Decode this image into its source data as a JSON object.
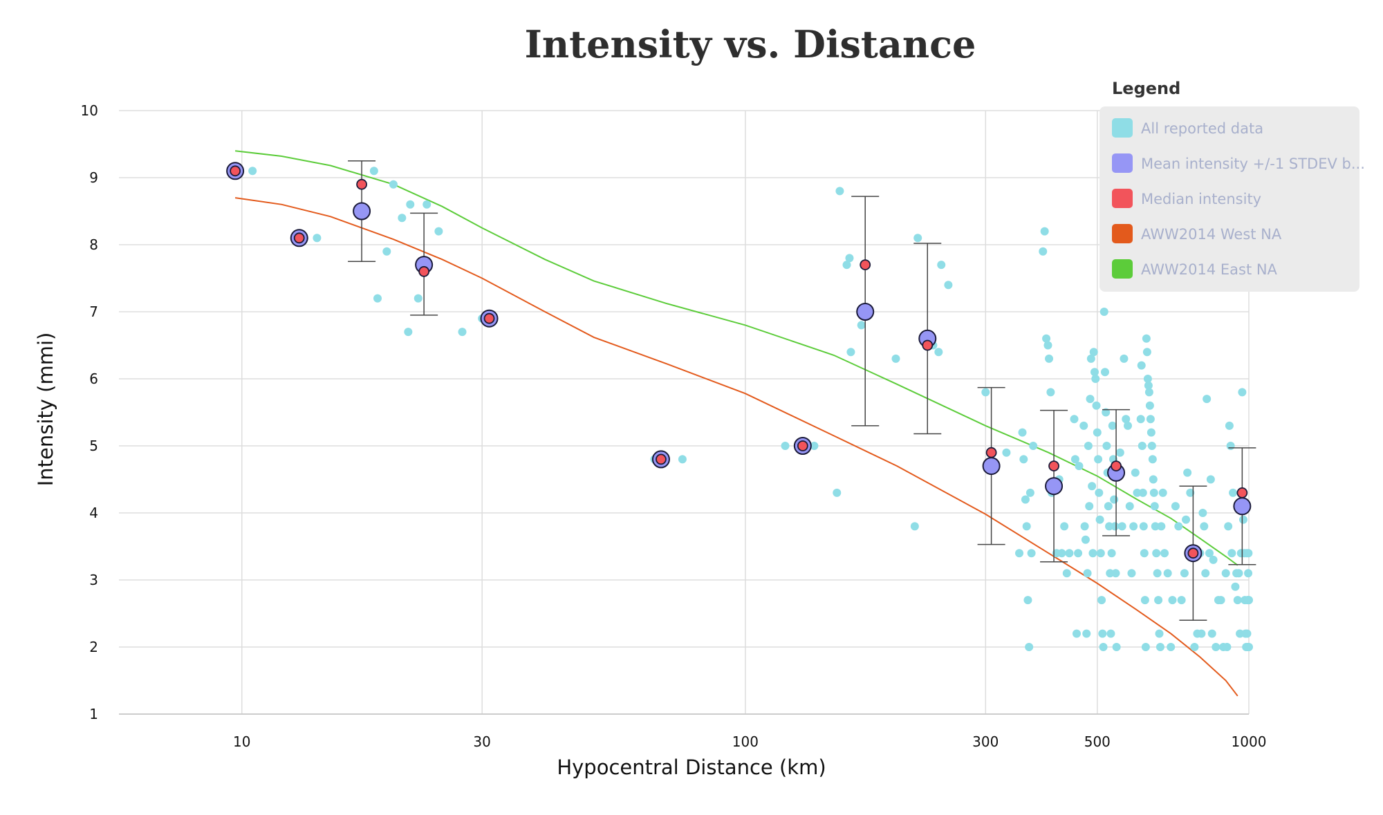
{
  "chart_data": {
    "type": "scatter",
    "title": "Intensity vs. Distance",
    "xlabel": "Hypocentral Distance (km)",
    "ylabel": "Intensity (mmi)",
    "xscale": "log",
    "xlim": [
      5.7,
      1000
    ],
    "ylim": [
      1,
      10
    ],
    "xticks": [
      10,
      30,
      100,
      300,
      500,
      1000
    ],
    "xtick_labels": [
      "10",
      "30",
      "100",
      "300",
      "500",
      "1000"
    ],
    "yticks": [
      1,
      2,
      3,
      4,
      5,
      6,
      7,
      8,
      9,
      10
    ],
    "ytick_labels": [
      "1",
      "2",
      "3",
      "4",
      "5",
      "6",
      "7",
      "8",
      "9",
      "10"
    ],
    "grid": true,
    "legend": {
      "title": "Legend",
      "position": "top-right",
      "entries": [
        {
          "label": "All reported data",
          "color": "#8fdde6"
        },
        {
          "label": "Mean intensity +/-1 STDEV b...",
          "color": "#9696f5"
        },
        {
          "label": "Median intensity",
          "color": "#f2545b"
        },
        {
          "label": "AWW2014 West NA",
          "color": "#e35a1c"
        },
        {
          "label": "AWW2014 East NA",
          "color": "#5ccc3a"
        }
      ]
    },
    "series": [
      {
        "name": "All reported data",
        "type": "scatter",
        "color": "#8fdde6",
        "points": [
          [
            9.7,
            9.1
          ],
          [
            10.5,
            9.1
          ],
          [
            13.3,
            8.1
          ],
          [
            14.1,
            8.1
          ],
          [
            18.3,
            9.1
          ],
          [
            18.6,
            7.2
          ],
          [
            19.4,
            7.9
          ],
          [
            20.0,
            8.9
          ],
          [
            20.8,
            8.4
          ],
          [
            21.4,
            6.7
          ],
          [
            21.6,
            8.6
          ],
          [
            22.4,
            7.2
          ],
          [
            23.3,
            8.6
          ],
          [
            24.6,
            8.2
          ],
          [
            27.4,
            6.7
          ],
          [
            30.0,
            6.9
          ],
          [
            31.0,
            6.9
          ],
          [
            31.5,
            6.9
          ],
          [
            66.0,
            4.8
          ],
          [
            75.0,
            4.8
          ],
          [
            120.0,
            5.0
          ],
          [
            137.0,
            5.0
          ],
          [
            152.0,
            4.3
          ],
          [
            154.0,
            8.8
          ],
          [
            159.0,
            7.7
          ],
          [
            161.0,
            7.8
          ],
          [
            162.0,
            6.4
          ],
          [
            170.0,
            6.8
          ],
          [
            199.0,
            6.3
          ],
          [
            217.0,
            3.8
          ],
          [
            220.0,
            8.1
          ],
          [
            236.0,
            6.5
          ],
          [
            242.0,
            6.4
          ],
          [
            245.0,
            7.7
          ],
          [
            253.0,
            7.4
          ],
          [
            300.0,
            5.8
          ],
          [
            308.0,
            4.7
          ],
          [
            330.0,
            4.9
          ],
          [
            350.0,
            3.4
          ],
          [
            355.0,
            5.2
          ],
          [
            357.0,
            4.8
          ],
          [
            360.0,
            4.2
          ],
          [
            362.0,
            3.8
          ],
          [
            364.0,
            2.7
          ],
          [
            366.0,
            2.0
          ],
          [
            368.0,
            4.3
          ],
          [
            370.0,
            3.4
          ],
          [
            373.0,
            5.0
          ],
          [
            390.0,
            7.9
          ],
          [
            393.0,
            8.2
          ],
          [
            396.0,
            6.6
          ],
          [
            399.0,
            6.5
          ],
          [
            401.0,
            6.3
          ],
          [
            404.0,
            5.8
          ],
          [
            406.0,
            4.3
          ],
          [
            410.0,
            4.7
          ],
          [
            415.0,
            3.4
          ],
          [
            420.0,
            4.5
          ],
          [
            425.0,
            3.4
          ],
          [
            430.0,
            3.8
          ],
          [
            435.0,
            3.1
          ],
          [
            440.0,
            3.4
          ],
          [
            450.0,
            5.4
          ],
          [
            452.0,
            4.8
          ],
          [
            455.0,
            2.2
          ],
          [
            458.0,
            3.4
          ],
          [
            460.0,
            4.7
          ],
          [
            470.0,
            5.3
          ],
          [
            472.0,
            3.8
          ],
          [
            474.0,
            3.6
          ],
          [
            476.0,
            2.2
          ],
          [
            478.0,
            3.1
          ],
          [
            480.0,
            5.0
          ],
          [
            482.0,
            4.1
          ],
          [
            484.0,
            5.7
          ],
          [
            486.0,
            6.3
          ],
          [
            488.0,
            4.4
          ],
          [
            490.0,
            3.4
          ],
          [
            492.0,
            6.4
          ],
          [
            494.0,
            6.1
          ],
          [
            496.0,
            6.0
          ],
          [
            498.0,
            5.6
          ],
          [
            500.0,
            5.2
          ],
          [
            502.0,
            4.8
          ],
          [
            504.0,
            4.3
          ],
          [
            506.0,
            3.9
          ],
          [
            508.0,
            3.4
          ],
          [
            510.0,
            2.7
          ],
          [
            512.0,
            2.2
          ],
          [
            514.0,
            2.0
          ],
          [
            516.0,
            7.0
          ],
          [
            518.0,
            6.1
          ],
          [
            520.0,
            5.5
          ],
          [
            522.0,
            5.0
          ],
          [
            524.0,
            4.6
          ],
          [
            526.0,
            4.1
          ],
          [
            528.0,
            3.8
          ],
          [
            530.0,
            3.1
          ],
          [
            532.0,
            2.2
          ],
          [
            534.0,
            3.4
          ],
          [
            536.0,
            5.3
          ],
          [
            538.0,
            4.8
          ],
          [
            540.0,
            4.2
          ],
          [
            542.0,
            3.8
          ],
          [
            544.0,
            3.1
          ],
          [
            546.0,
            2.0
          ],
          [
            550.0,
            4.6
          ],
          [
            555.0,
            4.9
          ],
          [
            560.0,
            3.8
          ],
          [
            565.0,
            6.3
          ],
          [
            570.0,
            5.4
          ],
          [
            575.0,
            5.3
          ],
          [
            580.0,
            4.1
          ],
          [
            585.0,
            3.1
          ],
          [
            590.0,
            3.8
          ],
          [
            595.0,
            4.6
          ],
          [
            600.0,
            4.3
          ],
          [
            610.0,
            5.4
          ],
          [
            612.0,
            6.2
          ],
          [
            614.0,
            5.0
          ],
          [
            616.0,
            4.3
          ],
          [
            618.0,
            3.8
          ],
          [
            620.0,
            3.4
          ],
          [
            622.0,
            2.7
          ],
          [
            624.0,
            2.0
          ],
          [
            626.0,
            6.6
          ],
          [
            628.0,
            6.4
          ],
          [
            630.0,
            6.0
          ],
          [
            632.0,
            5.9
          ],
          [
            634.0,
            5.8
          ],
          [
            636.0,
            5.6
          ],
          [
            638.0,
            5.4
          ],
          [
            640.0,
            5.2
          ],
          [
            642.0,
            5.0
          ],
          [
            644.0,
            4.8
          ],
          [
            646.0,
            4.5
          ],
          [
            648.0,
            4.3
          ],
          [
            650.0,
            4.1
          ],
          [
            652.0,
            3.8
          ],
          [
            655.0,
            3.4
          ],
          [
            658.0,
            3.1
          ],
          [
            661.0,
            2.7
          ],
          [
            664.0,
            2.2
          ],
          [
            667.0,
            2.0
          ],
          [
            670.0,
            3.8
          ],
          [
            675.0,
            4.3
          ],
          [
            680.0,
            3.4
          ],
          [
            690.0,
            3.1
          ],
          [
            700.0,
            2.0
          ],
          [
            705.0,
            2.7
          ],
          [
            715.0,
            4.1
          ],
          [
            725.0,
            3.8
          ],
          [
            735.0,
            2.7
          ],
          [
            745.0,
            3.1
          ],
          [
            750.0,
            3.9
          ],
          [
            755.0,
            4.6
          ],
          [
            765.0,
            4.3
          ],
          [
            780.0,
            2.0
          ],
          [
            790.0,
            2.2
          ],
          [
            800.0,
            3.4
          ],
          [
            805.0,
            2.2
          ],
          [
            810.0,
            4.0
          ],
          [
            815.0,
            3.8
          ],
          [
            820.0,
            3.1
          ],
          [
            825.0,
            5.7
          ],
          [
            835.0,
            3.4
          ],
          [
            840.0,
            4.5
          ],
          [
            845.0,
            2.2
          ],
          [
            850.0,
            3.3
          ],
          [
            860.0,
            2.0
          ],
          [
            870.0,
            2.7
          ],
          [
            880.0,
            2.7
          ],
          [
            890.0,
            2.0
          ],
          [
            900.0,
            3.1
          ],
          [
            905.0,
            2.0
          ],
          [
            910.0,
            3.8
          ],
          [
            915.0,
            5.3
          ],
          [
            920.0,
            5.0
          ],
          [
            925.0,
            3.4
          ],
          [
            930.0,
            4.3
          ],
          [
            940.0,
            2.9
          ],
          [
            945.0,
            3.1
          ],
          [
            950.0,
            2.7
          ],
          [
            955.0,
            3.1
          ],
          [
            960.0,
            2.2
          ],
          [
            965.0,
            3.4
          ],
          [
            970.0,
            5.8
          ],
          [
            975.0,
            3.9
          ],
          [
            980.0,
            3.4
          ],
          [
            982.0,
            2.7
          ],
          [
            985.0,
            2.2
          ],
          [
            988.0,
            2.0
          ],
          [
            990.0,
            3.4
          ],
          [
            992.0,
            2.2
          ],
          [
            994.0,
            2.7
          ],
          [
            996.0,
            2.0
          ],
          [
            997.0,
            3.1
          ],
          [
            998.0,
            3.4
          ],
          [
            999.0,
            2.7
          ],
          [
            1000.0,
            2.0
          ],
          [
            1000.0,
            2.7
          ]
        ]
      },
      {
        "name": "Mean intensity +/-1 STDEV b...",
        "type": "scatter_errorbar",
        "color": "#9696f5",
        "points": [
          {
            "x": 9.7,
            "y": 9.1,
            "lo": 9.1,
            "hi": 9.1
          },
          {
            "x": 13.0,
            "y": 8.1,
            "lo": 8.1,
            "hi": 8.1
          },
          {
            "x": 17.3,
            "y": 8.5,
            "lo": 7.75,
            "hi": 9.25
          },
          {
            "x": 23.0,
            "y": 7.7,
            "lo": 6.95,
            "hi": 8.47
          },
          {
            "x": 31.0,
            "y": 6.9,
            "lo": 6.9,
            "hi": 6.9
          },
          {
            "x": 68.0,
            "y": 4.8,
            "lo": 4.8,
            "hi": 4.8
          },
          {
            "x": 130.0,
            "y": 5.0,
            "lo": 5.0,
            "hi": 5.0
          },
          {
            "x": 173.0,
            "y": 7.0,
            "lo": 5.3,
            "hi": 8.72
          },
          {
            "x": 230.0,
            "y": 6.6,
            "lo": 5.18,
            "hi": 8.02
          },
          {
            "x": 308.0,
            "y": 4.7,
            "lo": 3.53,
            "hi": 5.87
          },
          {
            "x": 410.0,
            "y": 4.4,
            "lo": 3.27,
            "hi": 5.53
          },
          {
            "x": 545.0,
            "y": 4.6,
            "lo": 3.66,
            "hi": 5.54
          },
          {
            "x": 775.0,
            "y": 3.4,
            "lo": 2.4,
            "hi": 4.4
          },
          {
            "x": 970.0,
            "y": 4.1,
            "lo": 3.23,
            "hi": 4.97
          }
        ]
      },
      {
        "name": "Median intensity",
        "type": "scatter",
        "color": "#f2545b",
        "points": [
          [
            9.7,
            9.1
          ],
          [
            13.0,
            8.1
          ],
          [
            17.3,
            8.9
          ],
          [
            23.0,
            7.6
          ],
          [
            31.0,
            6.9
          ],
          [
            68.0,
            4.8
          ],
          [
            130.0,
            5.0
          ],
          [
            173.0,
            7.7
          ],
          [
            230.0,
            6.5
          ],
          [
            308.0,
            4.9
          ],
          [
            410.0,
            4.7
          ],
          [
            545.0,
            4.7
          ],
          [
            775.0,
            3.4
          ],
          [
            970.0,
            4.3
          ]
        ]
      },
      {
        "name": "AWW2014 West NA",
        "type": "line",
        "color": "#e35a1c",
        "points": [
          [
            9.7,
            8.7
          ],
          [
            12,
            8.6
          ],
          [
            15,
            8.42
          ],
          [
            20,
            8.08
          ],
          [
            25,
            7.78
          ],
          [
            30,
            7.5
          ],
          [
            40,
            7.0
          ],
          [
            50,
            6.62
          ],
          [
            70,
            6.22
          ],
          [
            100,
            5.78
          ],
          [
            150,
            5.15
          ],
          [
            200,
            4.7
          ],
          [
            300,
            3.98
          ],
          [
            400,
            3.4
          ],
          [
            500,
            2.95
          ],
          [
            600,
            2.55
          ],
          [
            700,
            2.2
          ],
          [
            800,
            1.85
          ],
          [
            900,
            1.5
          ],
          [
            950,
            1.27
          ]
        ]
      },
      {
        "name": "AWW2014 East NA",
        "type": "line",
        "color": "#5ccc3a",
        "points": [
          [
            9.7,
            9.4
          ],
          [
            12,
            9.32
          ],
          [
            15,
            9.18
          ],
          [
            20,
            8.9
          ],
          [
            25,
            8.57
          ],
          [
            30,
            8.25
          ],
          [
            40,
            7.78
          ],
          [
            50,
            7.46
          ],
          [
            70,
            7.12
          ],
          [
            100,
            6.8
          ],
          [
            150,
            6.35
          ],
          [
            200,
            5.92
          ],
          [
            300,
            5.3
          ],
          [
            400,
            4.9
          ],
          [
            500,
            4.55
          ],
          [
            600,
            4.2
          ],
          [
            700,
            3.92
          ],
          [
            800,
            3.62
          ],
          [
            900,
            3.35
          ],
          [
            950,
            3.22
          ]
        ]
      }
    ]
  }
}
